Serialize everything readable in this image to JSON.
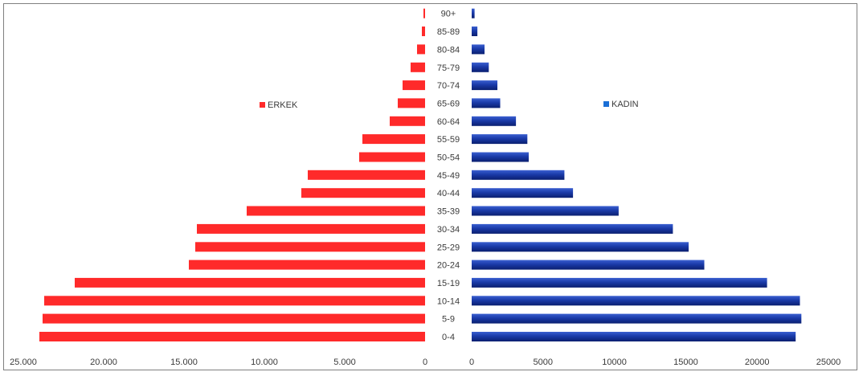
{
  "chart_data": {
    "type": "bar",
    "orientation": "horizontal",
    "layout": "population-pyramid",
    "categories": [
      "0-4",
      "5-9",
      "10-14",
      "15-19",
      "20-24",
      "25-29",
      "30-34",
      "35-39",
      "40-44",
      "45-49",
      "50-54",
      "55-59",
      "60-64",
      "65-69",
      "70-74",
      "75-79",
      "80-84",
      "85-89",
      "90+"
    ],
    "series": [
      {
        "name": "ERKEK",
        "color": "#ff2a2a",
        "values": [
          24000,
          23800,
          23700,
          21800,
          14700,
          14300,
          14200,
          11100,
          7700,
          7300,
          4100,
          3900,
          2200,
          1700,
          1400,
          900,
          500,
          200,
          100
        ]
      },
      {
        "name": "KADIN",
        "color": "#1a3aa8",
        "values": [
          22700,
          23100,
          23000,
          20700,
          16300,
          15200,
          14100,
          10300,
          7100,
          6500,
          4000,
          3900,
          3100,
          2000,
          1800,
          1200,
          900,
          400,
          200
        ]
      }
    ],
    "left_axis": {
      "range": [
        0,
        25000
      ],
      "ticks": [
        "25.000",
        "20.000",
        "15.000",
        "10.000",
        "5.000",
        "0"
      ]
    },
    "right_axis": {
      "range": [
        0,
        25000
      ],
      "ticks": [
        "0",
        "5000",
        "10000",
        "15000",
        "20000",
        "25000"
      ]
    },
    "legend": [
      {
        "label": "ERKEK",
        "color": "#ff2a2a",
        "placement": "left-middle"
      },
      {
        "label": "KADIN",
        "color": "#1a6fd6",
        "placement": "right-middle"
      }
    ],
    "grid": false
  }
}
